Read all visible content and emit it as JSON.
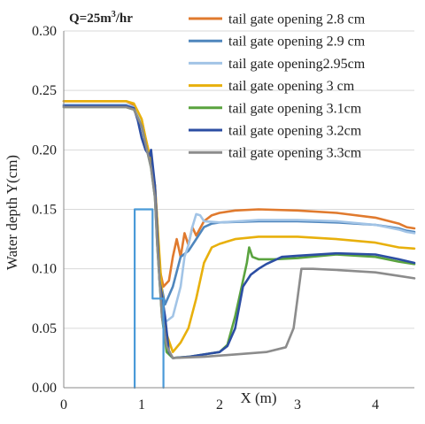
{
  "chart_data": {
    "type": "line",
    "title": "Q=25m3/hr",
    "title_main": "Q=25m",
    "title_sup": "3",
    "title_tail": "/hr",
    "xlabel": "X (m)",
    "ylabel": "Water depth Y(cm)",
    "xlim": [
      0,
      4.5
    ],
    "ylim": [
      0,
      0.3
    ],
    "xticks": [
      "0",
      "1",
      "2",
      "3",
      "4"
    ],
    "yticks": [
      "0.00",
      "0.05",
      "0.10",
      "0.15",
      "0.20",
      "0.25",
      "0.30"
    ],
    "grid": "horizontal",
    "legend_position": "top-right",
    "series": [
      {
        "name": "tail gate opening 2.8 cm",
        "color": "#e07a2e",
        "points": [
          [
            0,
            0.241
          ],
          [
            0.8,
            0.241
          ],
          [
            0.9,
            0.238
          ],
          [
            1.0,
            0.225
          ],
          [
            1.05,
            0.21
          ],
          [
            1.12,
            0.19
          ],
          [
            1.17,
            0.17
          ],
          [
            1.2,
            0.14
          ],
          [
            1.23,
            0.1
          ],
          [
            1.28,
            0.085
          ],
          [
            1.35,
            0.09
          ],
          [
            1.4,
            0.11
          ],
          [
            1.45,
            0.125
          ],
          [
            1.5,
            0.11
          ],
          [
            1.55,
            0.13
          ],
          [
            1.6,
            0.12
          ],
          [
            1.65,
            0.135
          ],
          [
            1.7,
            0.128
          ],
          [
            1.8,
            0.14
          ],
          [
            1.9,
            0.145
          ],
          [
            2.0,
            0.147
          ],
          [
            2.2,
            0.149
          ],
          [
            2.5,
            0.15
          ],
          [
            3.0,
            0.149
          ],
          [
            3.5,
            0.147
          ],
          [
            4.0,
            0.143
          ],
          [
            4.3,
            0.138
          ],
          [
            4.4,
            0.135
          ],
          [
            4.5,
            0.134
          ]
        ]
      },
      {
        "name": "tail gate opening 2.9 cm",
        "color": "#4f86bd",
        "points": [
          [
            0,
            0.238
          ],
          [
            0.8,
            0.238
          ],
          [
            0.9,
            0.236
          ],
          [
            1.0,
            0.222
          ],
          [
            1.05,
            0.205
          ],
          [
            1.12,
            0.188
          ],
          [
            1.17,
            0.165
          ],
          [
            1.2,
            0.13
          ],
          [
            1.24,
            0.09
          ],
          [
            1.3,
            0.07
          ],
          [
            1.4,
            0.085
          ],
          [
            1.5,
            0.11
          ],
          [
            1.6,
            0.115
          ],
          [
            1.7,
            0.125
          ],
          [
            1.8,
            0.135
          ],
          [
            1.9,
            0.138
          ],
          [
            2.0,
            0.139
          ],
          [
            2.5,
            0.14
          ],
          [
            3.0,
            0.14
          ],
          [
            3.5,
            0.139
          ],
          [
            4.0,
            0.137
          ],
          [
            4.3,
            0.134
          ],
          [
            4.4,
            0.132
          ],
          [
            4.5,
            0.131
          ]
        ]
      },
      {
        "name": "tail gate opening2.95cm",
        "color": "#a2c4e6",
        "points": [
          [
            0,
            0.238
          ],
          [
            0.8,
            0.238
          ],
          [
            0.9,
            0.236
          ],
          [
            1.0,
            0.222
          ],
          [
            1.05,
            0.205
          ],
          [
            1.12,
            0.188
          ],
          [
            1.17,
            0.165
          ],
          [
            1.2,
            0.13
          ],
          [
            1.25,
            0.08
          ],
          [
            1.3,
            0.055
          ],
          [
            1.4,
            0.06
          ],
          [
            1.5,
            0.085
          ],
          [
            1.55,
            0.11
          ],
          [
            1.6,
            0.12
          ],
          [
            1.65,
            0.135
          ],
          [
            1.7,
            0.146
          ],
          [
            1.75,
            0.145
          ],
          [
            1.8,
            0.14
          ],
          [
            2.0,
            0.139
          ],
          [
            2.5,
            0.141
          ],
          [
            3.0,
            0.141
          ],
          [
            3.5,
            0.14
          ],
          [
            4.0,
            0.137
          ],
          [
            4.3,
            0.133
          ],
          [
            4.4,
            0.131
          ],
          [
            4.5,
            0.13
          ]
        ]
      },
      {
        "name": "tail gate opening 3 cm",
        "color": "#e8b00c",
        "points": [
          [
            0,
            0.241
          ],
          [
            0.8,
            0.241
          ],
          [
            0.9,
            0.239
          ],
          [
            1.0,
            0.226
          ],
          [
            1.05,
            0.21
          ],
          [
            1.12,
            0.19
          ],
          [
            1.17,
            0.17
          ],
          [
            1.2,
            0.14
          ],
          [
            1.26,
            0.08
          ],
          [
            1.32,
            0.045
          ],
          [
            1.4,
            0.03
          ],
          [
            1.5,
            0.038
          ],
          [
            1.6,
            0.05
          ],
          [
            1.7,
            0.075
          ],
          [
            1.8,
            0.105
          ],
          [
            1.9,
            0.118
          ],
          [
            2.0,
            0.121
          ],
          [
            2.2,
            0.125
          ],
          [
            2.5,
            0.127
          ],
          [
            3.0,
            0.127
          ],
          [
            3.5,
            0.125
          ],
          [
            4.0,
            0.122
          ],
          [
            4.3,
            0.118
          ],
          [
            4.5,
            0.117
          ]
        ]
      },
      {
        "name": "tail gate opening 3.1cm",
        "color": "#5aa33f",
        "points": [
          [
            0,
            0.236
          ],
          [
            0.8,
            0.236
          ],
          [
            0.9,
            0.234
          ],
          [
            1.0,
            0.22
          ],
          [
            1.05,
            0.205
          ],
          [
            1.12,
            0.185
          ],
          [
            1.17,
            0.16
          ],
          [
            1.2,
            0.12
          ],
          [
            1.26,
            0.06
          ],
          [
            1.32,
            0.03
          ],
          [
            1.4,
            0.025
          ],
          [
            1.6,
            0.026
          ],
          [
            1.8,
            0.028
          ],
          [
            2.0,
            0.03
          ],
          [
            2.1,
            0.036
          ],
          [
            2.2,
            0.06
          ],
          [
            2.3,
            0.09
          ],
          [
            2.35,
            0.105
          ],
          [
            2.38,
            0.118
          ],
          [
            2.42,
            0.11
          ],
          [
            2.5,
            0.108
          ],
          [
            2.7,
            0.108
          ],
          [
            3.0,
            0.109
          ],
          [
            3.5,
            0.112
          ],
          [
            4.0,
            0.11
          ],
          [
            4.3,
            0.106
          ],
          [
            4.5,
            0.104
          ]
        ]
      },
      {
        "name": "tail gate opening 3.2cm",
        "color": "#2c4ea3",
        "points": [
          [
            0,
            0.237
          ],
          [
            0.8,
            0.237
          ],
          [
            0.9,
            0.235
          ],
          [
            0.95,
            0.225
          ],
          [
            1.0,
            0.21
          ],
          [
            1.05,
            0.2
          ],
          [
            1.1,
            0.195
          ],
          [
            1.12,
            0.2
          ],
          [
            1.17,
            0.17
          ],
          [
            1.2,
            0.13
          ],
          [
            1.23,
            0.09
          ],
          [
            1.3,
            0.06
          ],
          [
            1.35,
            0.03
          ],
          [
            1.4,
            0.025
          ],
          [
            1.6,
            0.026
          ],
          [
            1.8,
            0.028
          ],
          [
            2.0,
            0.03
          ],
          [
            2.1,
            0.035
          ],
          [
            2.2,
            0.05
          ],
          [
            2.3,
            0.085
          ],
          [
            2.4,
            0.095
          ],
          [
            2.5,
            0.1
          ],
          [
            2.6,
            0.104
          ],
          [
            2.8,
            0.11
          ],
          [
            3.0,
            0.111
          ],
          [
            3.5,
            0.113
          ],
          [
            4.0,
            0.112
          ],
          [
            4.3,
            0.108
          ],
          [
            4.5,
            0.105
          ]
        ]
      },
      {
        "name": "tail gate opening 3.3cm",
        "color": "#8c8c8c",
        "points": [
          [
            0,
            0.236
          ],
          [
            0.8,
            0.236
          ],
          [
            0.9,
            0.234
          ],
          [
            1.0,
            0.22
          ],
          [
            1.05,
            0.205
          ],
          [
            1.12,
            0.185
          ],
          [
            1.17,
            0.16
          ],
          [
            1.2,
            0.12
          ],
          [
            1.26,
            0.06
          ],
          [
            1.32,
            0.035
          ],
          [
            1.4,
            0.025
          ],
          [
            1.8,
            0.026
          ],
          [
            2.2,
            0.028
          ],
          [
            2.6,
            0.03
          ],
          [
            2.85,
            0.034
          ],
          [
            2.95,
            0.05
          ],
          [
            3.0,
            0.075
          ],
          [
            3.05,
            0.1
          ],
          [
            3.2,
            0.1
          ],
          [
            3.5,
            0.099
          ],
          [
            4.0,
            0.097
          ],
          [
            4.3,
            0.094
          ],
          [
            4.5,
            0.092
          ]
        ]
      },
      {
        "name": "",
        "color": "#4a9ad8",
        "points": [
          [
            0.91,
            0
          ],
          [
            0.91,
            0.15
          ],
          [
            1.14,
            0.15
          ],
          [
            1.14,
            0.075
          ],
          [
            1.28,
            0.075
          ],
          [
            1.28,
            0
          ]
        ]
      }
    ]
  }
}
